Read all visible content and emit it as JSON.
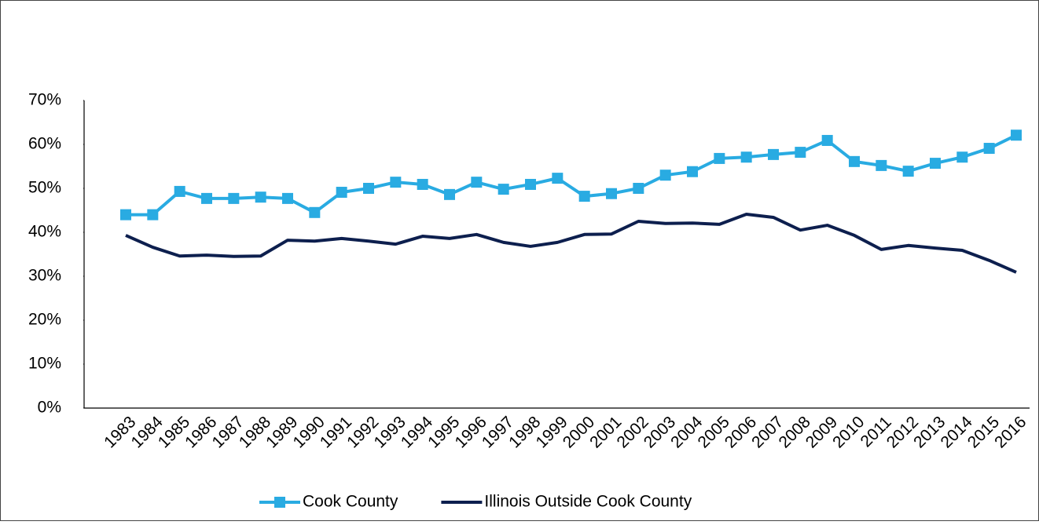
{
  "chart_data": {
    "type": "line",
    "categories": [
      "1983",
      "1984",
      "1985",
      "1986",
      "1987",
      "1988",
      "1989",
      "1990",
      "1991",
      "1992",
      "1993",
      "1994",
      "1995",
      "1996",
      "1997",
      "1998",
      "1999",
      "2000",
      "2001",
      "2002",
      "2003",
      "2004",
      "2005",
      "2006",
      "2007",
      "2008",
      "2009",
      "2010",
      "2011",
      "2012",
      "2013",
      "2014",
      "2015",
      "2016"
    ],
    "series": [
      {
        "name": "Cook County",
        "color": "#29abe2",
        "marker": "square",
        "values": [
          44,
          44,
          49.3,
          47.7,
          47.7,
          48,
          47.7,
          44.5,
          49.1,
          50,
          51.4,
          50.9,
          48.6,
          51.4,
          49.8,
          50.9,
          52.3,
          48.2,
          48.8,
          50,
          53,
          53.8,
          56.8,
          57.1,
          57.7,
          58.2,
          60.9,
          56.1,
          55.2,
          53.9,
          55.7,
          57.1,
          59.1,
          62.1
        ]
      },
      {
        "name": "Illinois Outside Cook County",
        "color": "#0d1f4e",
        "values": [
          39.3,
          36.6,
          34.6,
          34.8,
          34.5,
          34.6,
          38.2,
          38,
          38.6,
          38,
          37.3,
          39.1,
          38.6,
          39.5,
          37.7,
          36.8,
          37.7,
          39.5,
          39.6,
          42.5,
          42,
          42.1,
          41.8,
          44.1,
          43.4,
          40.5,
          41.6,
          39.3,
          36.1,
          37,
          36.4,
          35.9,
          33.6,
          30.9
        ]
      }
    ],
    "ylim": [
      0,
      70
    ],
    "yticks": [
      {
        "value": 0,
        "label": "0%"
      },
      {
        "value": 10,
        "label": "10%"
      },
      {
        "value": 20,
        "label": "20%"
      },
      {
        "value": 30,
        "label": "30%"
      },
      {
        "value": 40,
        "label": "40%"
      },
      {
        "value": 50,
        "label": "50%"
      },
      {
        "value": 60,
        "label": "60%"
      },
      {
        "value": 70,
        "label": "70%"
      }
    ],
    "grid": false,
    "legend": "bottom"
  }
}
